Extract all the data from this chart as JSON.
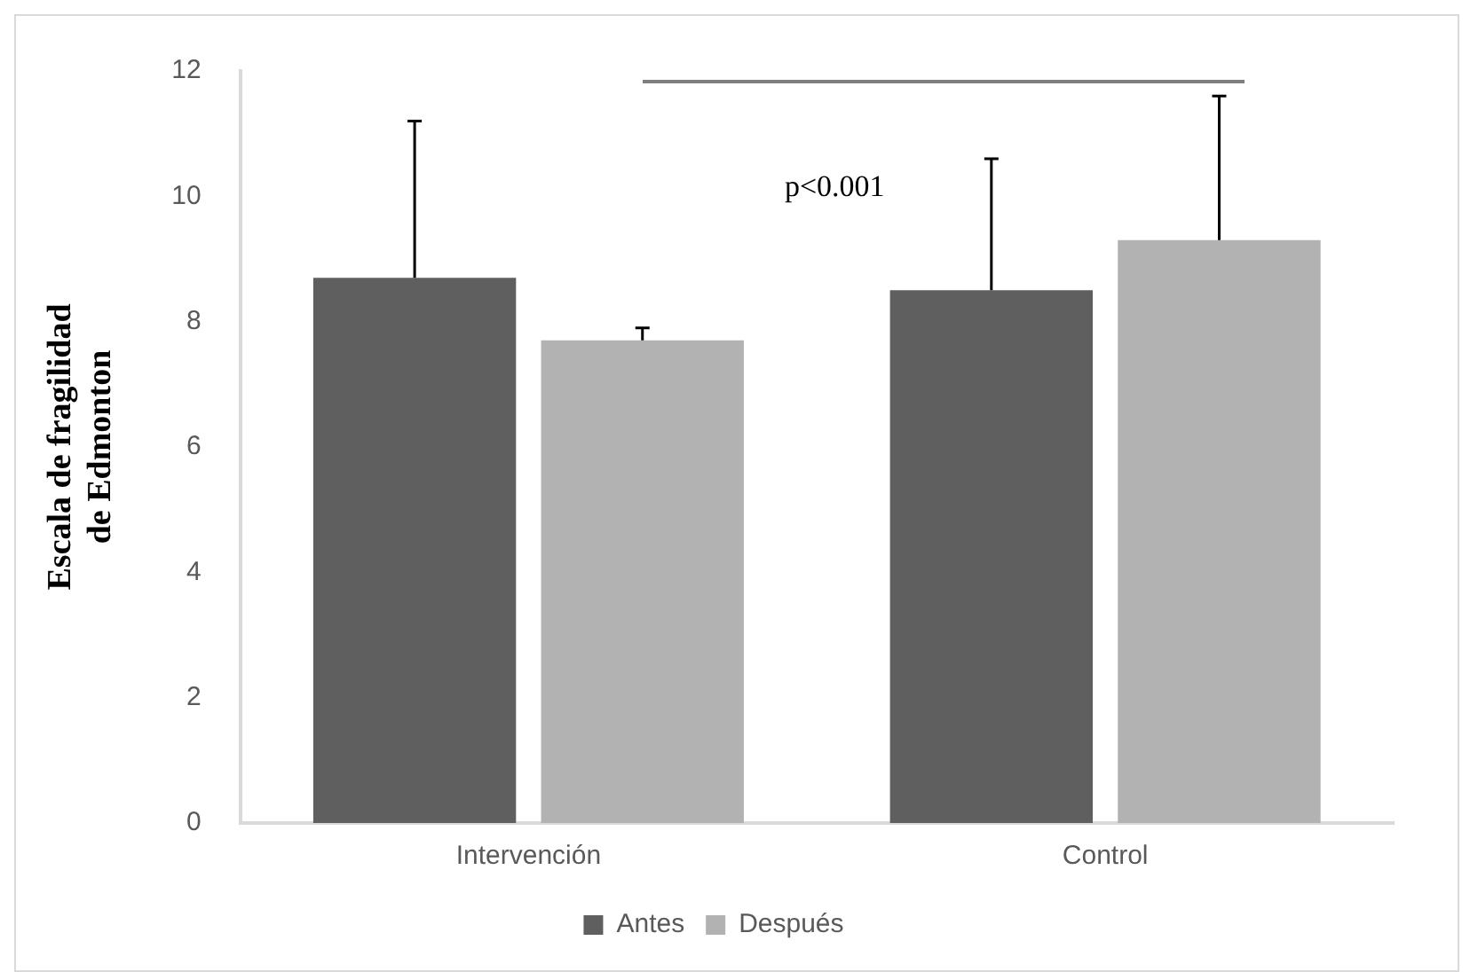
{
  "chart_data": {
    "type": "bar",
    "ylabel": "Escala de fragilidad\nde Edmonton",
    "categories": [
      "Intervención",
      "Control"
    ],
    "series": [
      {
        "name": "Antes",
        "color": "#5f5f5f",
        "values": [
          8.7,
          8.5
        ],
        "errors": [
          [
            8.7,
            11.2
          ],
          [
            8.5,
            10.6
          ]
        ]
      },
      {
        "name": "Después",
        "color": "#b2b2b2",
        "values": [
          7.7,
          9.3
        ],
        "errors": [
          [
            7.7,
            7.9
          ],
          [
            9.3,
            11.6
          ]
        ]
      }
    ],
    "ylim": [
      0,
      12
    ],
    "yticks": [
      0,
      2,
      4,
      6,
      8,
      10,
      12
    ],
    "grid": false,
    "legend": "bottom",
    "annotations": [
      "p<0.001"
    ]
  }
}
